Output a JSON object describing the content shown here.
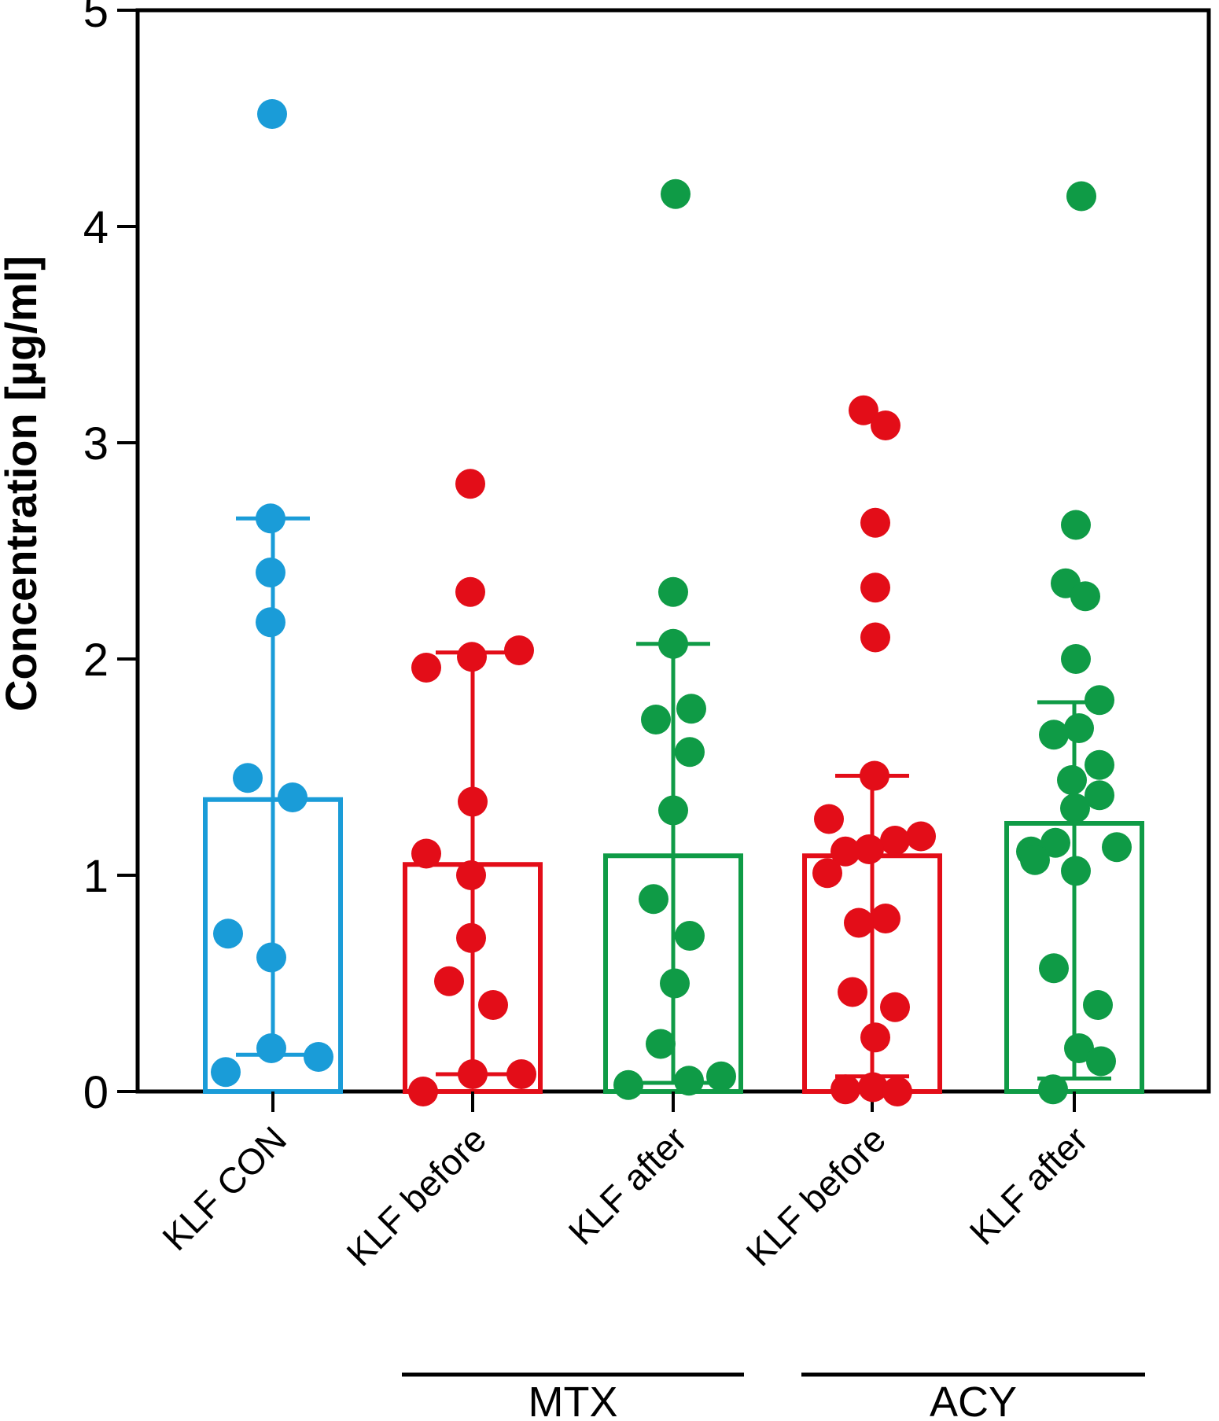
{
  "figure": {
    "background": "#ffffff",
    "axis_color": "#000000",
    "colors": {
      "control": "#1a9cd8",
      "before": "#e30d18",
      "after": "#0f9b46"
    }
  },
  "y_axis": {
    "label": "Concentration [µg/ml]",
    "ticks": [
      0,
      1,
      2,
      3,
      4,
      5
    ],
    "min": 0,
    "max": 5
  },
  "chart_data": {
    "type": "bar",
    "subtype": "bar-with-error-and-scatter-overlay",
    "title": "",
    "xlabel": "",
    "ylabel": "Concentration [µg/ml]",
    "ylim": [
      0,
      5
    ],
    "grid": false,
    "legend": "none",
    "categories": [
      "KLF CON",
      "KLF before",
      "KLF after",
      "KLF before",
      "KLF after"
    ],
    "series": [
      {
        "name": "KLF CON",
        "treatment": "",
        "color": "#1a9cd8",
        "center": 347,
        "bar_value": 1.35,
        "whisker_low": 0.17,
        "whisker_high": 2.65,
        "points": [
          {
            "dx": -1,
            "v": 4.52
          },
          {
            "dx": -3,
            "v": 2.65
          },
          {
            "dx": -3,
            "v": 2.4
          },
          {
            "dx": -3,
            "v": 2.17
          },
          {
            "dx": -32,
            "v": 1.45
          },
          {
            "dx": 25,
            "v": 1.36
          },
          {
            "dx": -57,
            "v": 0.73
          },
          {
            "dx": -2,
            "v": 0.62
          },
          {
            "dx": -2,
            "v": 0.2
          },
          {
            "dx": 58,
            "v": 0.16
          },
          {
            "dx": -60,
            "v": 0.09
          }
        ]
      },
      {
        "name": "KLF before",
        "treatment": "MTX",
        "color": "#e30d18",
        "center": 601,
        "bar_value": 1.05,
        "whisker_low": 0.08,
        "whisker_high": 2.03,
        "points": [
          {
            "dx": -3,
            "v": 2.81
          },
          {
            "dx": -3,
            "v": 2.31
          },
          {
            "dx": 59,
            "v": 2.04
          },
          {
            "dx": -1,
            "v": 2.01
          },
          {
            "dx": -59,
            "v": 1.96
          },
          {
            "dx": 0,
            "v": 1.34
          },
          {
            "dx": -59,
            "v": 1.1
          },
          {
            "dx": -2,
            "v": 1.0
          },
          {
            "dx": -2,
            "v": 0.71
          },
          {
            "dx": -30,
            "v": 0.51
          },
          {
            "dx": 26,
            "v": 0.4
          },
          {
            "dx": 0,
            "v": 0.08
          },
          {
            "dx": 62,
            "v": 0.08
          },
          {
            "dx": -63,
            "v": 0.0
          }
        ]
      },
      {
        "name": "KLF after",
        "treatment": "MTX",
        "color": "#0f9b46",
        "center": 856,
        "bar_value": 1.09,
        "whisker_low": 0.04,
        "whisker_high": 2.07,
        "points": [
          {
            "dx": 3,
            "v": 4.15
          },
          {
            "dx": 0,
            "v": 2.31
          },
          {
            "dx": 0,
            "v": 2.07
          },
          {
            "dx": 23,
            "v": 1.77
          },
          {
            "dx": -22,
            "v": 1.72
          },
          {
            "dx": 21,
            "v": 1.57
          },
          {
            "dx": 0,
            "v": 1.3
          },
          {
            "dx": -25,
            "v": 0.89
          },
          {
            "dx": 21,
            "v": 0.72
          },
          {
            "dx": 2,
            "v": 0.5
          },
          {
            "dx": -16,
            "v": 0.22
          },
          {
            "dx": 61,
            "v": 0.07
          },
          {
            "dx": 20,
            "v": 0.05
          },
          {
            "dx": -57,
            "v": 0.03
          }
        ]
      },
      {
        "name": "KLF before",
        "treatment": "ACY",
        "color": "#e30d18",
        "center": 1109,
        "bar_value": 1.09,
        "whisker_low": 0.07,
        "whisker_high": 1.46,
        "points": [
          {
            "dx": -11,
            "v": 3.15
          },
          {
            "dx": 17,
            "v": 3.08
          },
          {
            "dx": 4,
            "v": 2.63
          },
          {
            "dx": 4,
            "v": 2.33
          },
          {
            "dx": 4,
            "v": 2.1
          },
          {
            "dx": 3,
            "v": 1.46
          },
          {
            "dx": -55,
            "v": 1.26
          },
          {
            "dx": 62,
            "v": 1.18
          },
          {
            "dx": 29,
            "v": 1.16
          },
          {
            "dx": -4,
            "v": 1.12
          },
          {
            "dx": -34,
            "v": 1.11
          },
          {
            "dx": -57,
            "v": 1.01
          },
          {
            "dx": 17,
            "v": 0.8
          },
          {
            "dx": -17,
            "v": 0.78
          },
          {
            "dx": -25,
            "v": 0.46
          },
          {
            "dx": 29,
            "v": 0.39
          },
          {
            "dx": 4,
            "v": 0.25
          },
          {
            "dx": 1,
            "v": 0.02
          },
          {
            "dx": -34,
            "v": 0.01
          },
          {
            "dx": 32,
            "v": 0.0
          }
        ]
      },
      {
        "name": "KLF after",
        "treatment": "ACY",
        "color": "#0f9b46",
        "center": 1366,
        "bar_value": 1.24,
        "whisker_low": 0.06,
        "whisker_high": 1.8,
        "points": [
          {
            "dx": 9,
            "v": 4.14
          },
          {
            "dx": 2,
            "v": 2.62
          },
          {
            "dx": -11,
            "v": 2.35
          },
          {
            "dx": 14,
            "v": 2.29
          },
          {
            "dx": 2,
            "v": 2.0
          },
          {
            "dx": 32,
            "v": 1.81
          },
          {
            "dx": 6,
            "v": 1.68
          },
          {
            "dx": -26,
            "v": 1.65
          },
          {
            "dx": 32,
            "v": 1.51
          },
          {
            "dx": -3,
            "v": 1.44
          },
          {
            "dx": 32,
            "v": 1.37
          },
          {
            "dx": 1,
            "v": 1.31
          },
          {
            "dx": -24,
            "v": 1.15
          },
          {
            "dx": 54,
            "v": 1.13
          },
          {
            "dx": -55,
            "v": 1.11
          },
          {
            "dx": -50,
            "v": 1.07
          },
          {
            "dx": 2,
            "v": 1.02
          },
          {
            "dx": -26,
            "v": 0.57
          },
          {
            "dx": 30,
            "v": 0.4
          },
          {
            "dx": 6,
            "v": 0.2
          },
          {
            "dx": 34,
            "v": 0.14
          },
          {
            "dx": -27,
            "v": 0.01
          }
        ]
      }
    ],
    "treatment_brackets": [
      {
        "label": "MTX",
        "group_start": 1,
        "group_end": 2
      },
      {
        "label": "ACY",
        "group_start": 3,
        "group_end": 4
      }
    ]
  }
}
